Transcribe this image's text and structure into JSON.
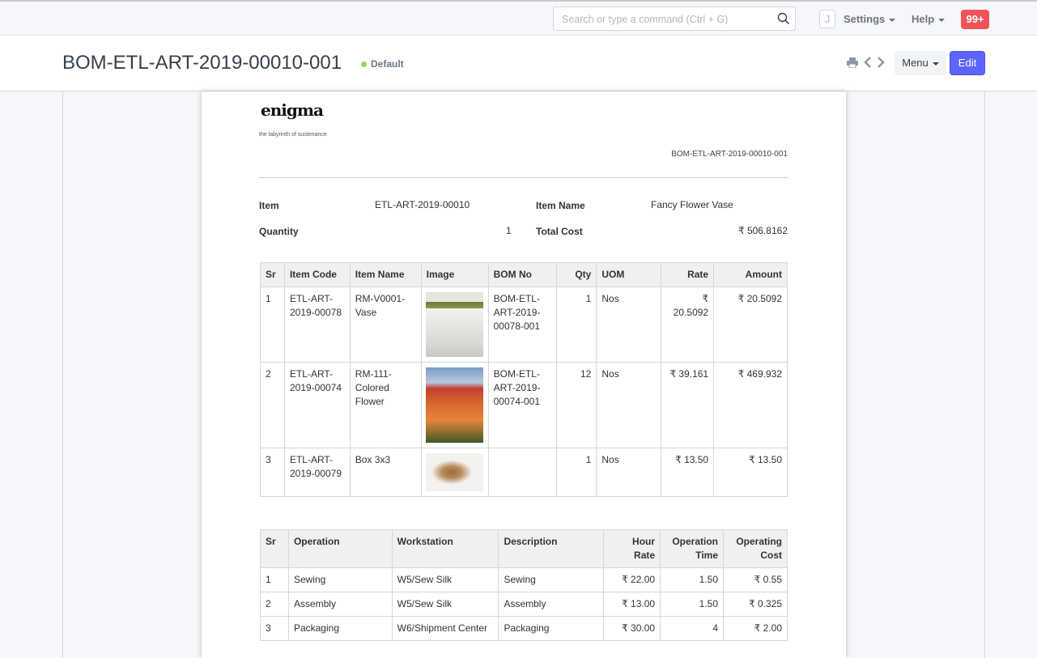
{
  "navbar": {
    "search_placeholder": "Search or type a command (Ctrl + G)",
    "avatar": "J",
    "settings": "Settings",
    "help": "Help",
    "notifications": "99+"
  },
  "header": {
    "title": "BOM-ETL-ART-2019-00010-001",
    "status": "Default",
    "menu": "Menu",
    "edit": "Edit"
  },
  "print": {
    "logo": "enigma",
    "tagline": "the labyrinth of sustenance",
    "doc_id": "BOM-ETL-ART-2019-00010-001",
    "fields": {
      "item_label": "Item",
      "item": "ETL-ART-2019-00010",
      "item_name_label": "Item Name",
      "item_name": "Fancy Flower Vase",
      "qty_label": "Quantity",
      "qty": "1",
      "total_cost_label": "Total Cost",
      "total_cost": "₹ 506.8162"
    },
    "items": {
      "headers": [
        "Sr",
        "Item Code",
        "Item Name",
        "Image",
        "BOM No",
        "Qty",
        "UOM",
        "Rate",
        "Amount"
      ],
      "rows": [
        {
          "sr": "1",
          "code": "ETL-ART-2019-00078",
          "name": "RM-V0001-Vase",
          "image": "white-pot",
          "bom": "BOM-ETL-ART-2019-00078-001",
          "qty": "1",
          "uom": "Nos",
          "rate": "₹ 20.5092",
          "amount": "₹ 20.5092"
        },
        {
          "sr": "2",
          "code": "ETL-ART-2019-00074",
          "name": "RM-111-Colored Flower",
          "image": "tulips",
          "bom": "BOM-ETL-ART-2019-00074-001",
          "qty": "12",
          "uom": "Nos",
          "rate": "₹ 39.161",
          "amount": "₹ 469.932"
        },
        {
          "sr": "3",
          "code": "ETL-ART-2019-00079",
          "name": "Box 3x3",
          "image": "wooden-boxes",
          "bom": "",
          "qty": "1",
          "uom": "Nos",
          "rate": "₹ 13.50",
          "amount": "₹ 13.50"
        }
      ]
    },
    "operations": {
      "headers": [
        "Sr",
        "Operation",
        "Workstation",
        "Description",
        "Hour Rate",
        "Operation Time",
        "Operating Cost"
      ],
      "rows": [
        {
          "sr": "1",
          "op": "Sewing",
          "ws": "W5/Sew Silk",
          "desc": "Sewing",
          "rate": "₹ 22.00",
          "time": "1.50",
          "cost": "₹ 0.55"
        },
        {
          "sr": "2",
          "op": "Assembly",
          "ws": "W5/Sew Silk",
          "desc": "Assembly",
          "rate": "₹ 13.00",
          "time": "1.50",
          "cost": "₹ 0.325"
        },
        {
          "sr": "3",
          "op": "Packaging",
          "ws": "W6/Shipment Center",
          "desc": "Packaging",
          "rate": "₹ 30.00",
          "time": "4",
          "cost": "₹ 2.00"
        }
      ]
    }
  }
}
